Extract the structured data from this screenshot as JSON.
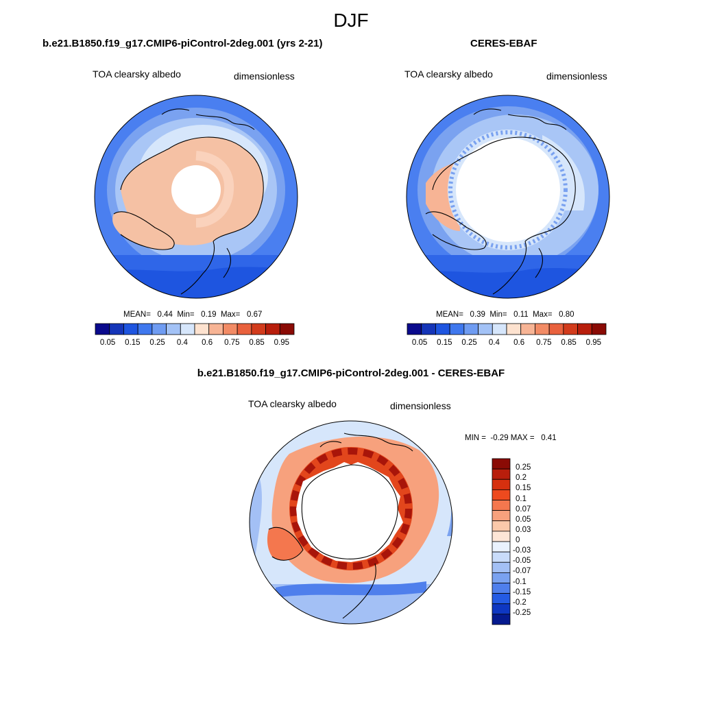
{
  "season": "DJF",
  "panels": [
    {
      "title": "b.e21.B1850.f19_g17.CMIP6-piControl-2deg.001 (yrs 2-21)",
      "variable": "TOA clearsky albedo",
      "units": "dimensionless",
      "stats": {
        "mean_label": "MEAN=",
        "mean": "0.44",
        "min_label": "Min=",
        "min": "0.19",
        "max_label": "Max=",
        "max": "0.67"
      }
    },
    {
      "title": "CERES-EBAF",
      "variable": "TOA clearsky albedo",
      "units": "dimensionless",
      "stats": {
        "mean_label": "MEAN=",
        "mean": "0.39",
        "min_label": "Min=",
        "min": "0.11",
        "max_label": "Max=",
        "max": "0.80"
      }
    },
    {
      "title": "b.e21.B1850.f19_g17.CMIP6-piControl-2deg.001 - CERES-EBAF",
      "variable": "TOA clearsky albedo",
      "units": "dimensionless",
      "stats_text": "MIN =  -0.29 MAX =   0.41"
    }
  ],
  "colorbar_abs": {
    "labels": [
      "0.05",
      "0.15",
      "0.25",
      "0.4",
      "0.6",
      "0.75",
      "0.85",
      "0.95"
    ],
    "colors": [
      "#0a0a8c",
      "#1535b8",
      "#1e55e0",
      "#3f78ee",
      "#6f9cf2",
      "#a3c2f6",
      "#d6e6fb",
      "#fde2cf",
      "#f7b495",
      "#f28b65",
      "#e9613d",
      "#d23b1c",
      "#b81e0c",
      "#8a0b05"
    ]
  },
  "colorbar_diff": {
    "labels": [
      "0.25",
      "0.2",
      "0.15",
      "0.1",
      "0.07",
      "0.05",
      "0.03",
      "0",
      "-0.03",
      "-0.05",
      "-0.07",
      "-0.1",
      "-0.15",
      "-0.2",
      "-0.25"
    ],
    "colors": [
      "#8a0b05",
      "#b81e0c",
      "#d6300f",
      "#ee4a1e",
      "#f4774e",
      "#f7a17d",
      "#fbc9aa",
      "#fde6d7",
      "#eaf2fd",
      "#c9dcfa",
      "#a3c0f5",
      "#7aa2f0",
      "#4f7fec",
      "#245be4",
      "#0e37c2",
      "#051a8f"
    ]
  },
  "map_colors": {
    "ocean_model": "#4a7ff0",
    "ocean_light": "#a9c6f6",
    "land_model": "#f5c1a4",
    "ice_free": "#ffffff",
    "diff_bg": "#d6e6fb",
    "diff_warm": "#e2461c",
    "diff_hot": "#a8150a"
  }
}
